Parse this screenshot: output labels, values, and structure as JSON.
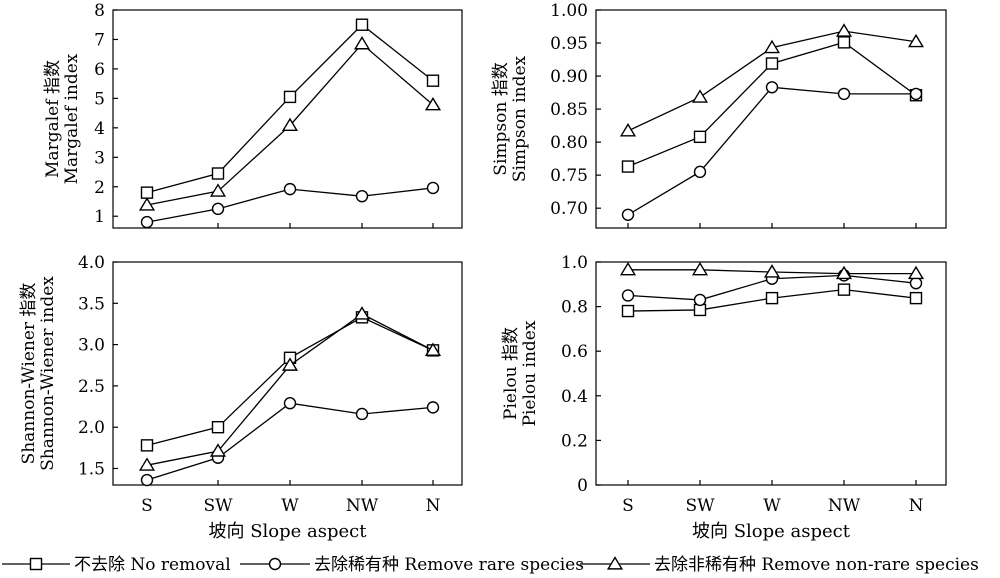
{
  "chart_data": [
    {
      "type": "line",
      "ylabel_line1": "Margalef 指数",
      "ylabel_line2": "Margalef index",
      "xlabel": "",
      "categories": [
        "S",
        "SW",
        "W",
        "NW",
        "N"
      ],
      "ylim": [
        0.6,
        8
      ],
      "yticks": [
        "1",
        "2",
        "3",
        "4",
        "5",
        "6",
        "7",
        "8"
      ],
      "ytick_values": [
        1,
        2,
        3,
        4,
        5,
        6,
        7,
        8
      ],
      "series": [
        {
          "name": "不去除 No removal",
          "marker": "square",
          "values": [
            1.8,
            2.45,
            5.05,
            7.5,
            5.6
          ]
        },
        {
          "name": "去除稀有种 Remove rare species",
          "marker": "circle",
          "values": [
            0.8,
            1.25,
            1.92,
            1.68,
            1.96
          ]
        },
        {
          "name": "去除非稀有种 Remove non-rare species",
          "marker": "triangle",
          "values": [
            1.38,
            1.85,
            4.08,
            6.85,
            4.78
          ]
        }
      ]
    },
    {
      "type": "line",
      "ylabel_line1": "Simpson 指数",
      "ylabel_line2": "Simpson index",
      "xlabel": "",
      "categories": [
        "S",
        "SW",
        "W",
        "NW",
        "N"
      ],
      "ylim": [
        0.67,
        1.0
      ],
      "yticks": [
        "0.70",
        "0.75",
        "0.80",
        "0.85",
        "0.90",
        "0.95",
        "1.00"
      ],
      "ytick_values": [
        0.7,
        0.75,
        0.8,
        0.85,
        0.9,
        0.95,
        1.0
      ],
      "series": [
        {
          "name": "不去除 No removal",
          "marker": "square",
          "values": [
            0.763,
            0.808,
            0.919,
            0.951,
            0.871
          ]
        },
        {
          "name": "去除稀有种 Remove rare species",
          "marker": "circle",
          "values": [
            0.69,
            0.755,
            0.883,
            0.873,
            0.873
          ]
        },
        {
          "name": "去除非稀有种 Remove non-rare species",
          "marker": "triangle",
          "values": [
            0.817,
            0.868,
            0.943,
            0.968,
            0.952
          ]
        }
      ]
    },
    {
      "type": "line",
      "ylabel_line1": "Shannon-Wiener 指数",
      "ylabel_line2": "Shannon-Wiener index",
      "xlabel": "坡向 Slope aspect",
      "categories": [
        "S",
        "SW",
        "W",
        "NW",
        "N"
      ],
      "ylim": [
        1.3,
        4.0
      ],
      "yticks": [
        "1.5",
        "2.0",
        "2.5",
        "3.0",
        "3.5",
        "4.0"
      ],
      "ytick_values": [
        1.5,
        2.0,
        2.5,
        3.0,
        3.5,
        4.0
      ],
      "series": [
        {
          "name": "不去除 No removal",
          "marker": "square",
          "values": [
            1.78,
            2.0,
            2.84,
            3.33,
            2.93
          ]
        },
        {
          "name": "去除稀有种 Remove rare species",
          "marker": "circle",
          "values": [
            1.36,
            1.63,
            2.29,
            2.16,
            2.24
          ]
        },
        {
          "name": "去除非稀有种 Remove non-rare species",
          "marker": "triangle",
          "values": [
            1.54,
            1.71,
            2.75,
            3.37,
            2.93
          ]
        }
      ]
    },
    {
      "type": "line",
      "ylabel_line1": "Pielou 指数",
      "ylabel_line2": "Pielou index",
      "xlabel": "坡向 Slope aspect",
      "categories": [
        "S",
        "SW",
        "W",
        "NW",
        "N"
      ],
      "ylim": [
        0,
        1.0
      ],
      "yticks": [
        "0",
        "0.2",
        "0.4",
        "0.6",
        "0.8",
        "1.0"
      ],
      "ytick_values": [
        0,
        0.2,
        0.4,
        0.6,
        0.8,
        1.0
      ],
      "series": [
        {
          "name": "不去除 No removal",
          "marker": "square",
          "values": [
            0.78,
            0.785,
            0.838,
            0.876,
            0.838
          ]
        },
        {
          "name": "去除稀有种 Remove rare species",
          "marker": "circle",
          "values": [
            0.85,
            0.83,
            0.925,
            0.94,
            0.905
          ]
        },
        {
          "name": "去除非稀有种 Remove non-rare species",
          "marker": "triangle",
          "values": [
            0.965,
            0.965,
            0.955,
            0.948,
            0.948
          ]
        }
      ]
    }
  ],
  "legend": [
    {
      "label": "不去除 No removal",
      "marker": "square"
    },
    {
      "label": "去除稀有种 Remove rare species",
      "marker": "circle"
    },
    {
      "label": "去除非稀有种 Remove non-rare species",
      "marker": "triangle"
    }
  ]
}
